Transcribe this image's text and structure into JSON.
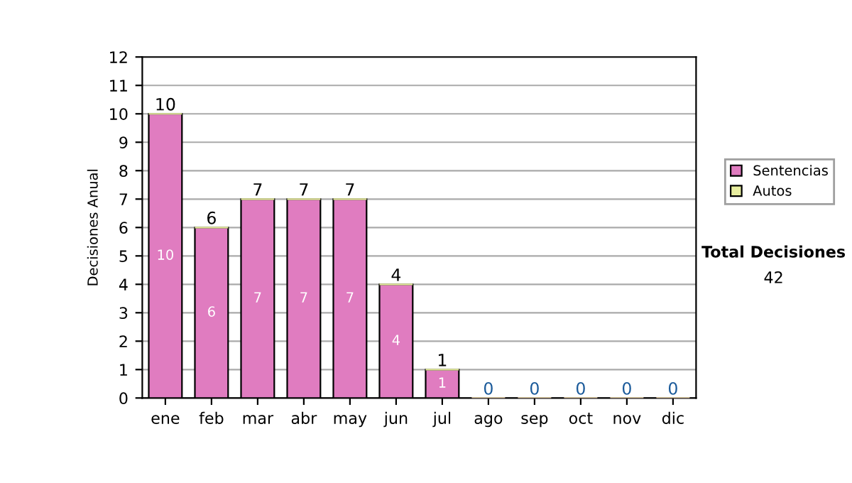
{
  "chart_data": {
    "type": "bar",
    "ylabel": "Decisiones Anual",
    "categories": [
      "ene",
      "feb",
      "mar",
      "abr",
      "may",
      "jun",
      "jul",
      "ago",
      "sep",
      "oct",
      "nov",
      "dic"
    ],
    "stacked": true,
    "series": [
      {
        "name": "Sentencias",
        "color": "#e07cc0",
        "values": [
          10,
          6,
          7,
          7,
          7,
          4,
          1,
          0,
          0,
          0,
          0,
          0
        ],
        "value_labels": [
          "10",
          "6",
          "7",
          "7",
          "7",
          "4",
          "1",
          null,
          null,
          null,
          null,
          null
        ]
      },
      {
        "name": "Autos",
        "color": "#e8eea0",
        "values": [
          0,
          0,
          0,
          0,
          0,
          0,
          0,
          0,
          0,
          0,
          0,
          0
        ]
      }
    ],
    "totals": [
      "10",
      "6",
      "7",
      "7",
      "7",
      "4",
      "1",
      "0",
      "0",
      "0",
      "0",
      "0"
    ],
    "ylim": [
      0,
      12
    ],
    "yticks": [
      0,
      1,
      2,
      3,
      4,
      5,
      6,
      7,
      8,
      9,
      10,
      11,
      12
    ],
    "grid": "y",
    "legend": "right",
    "annotations": [
      "Total Decisiones",
      "42"
    ]
  }
}
